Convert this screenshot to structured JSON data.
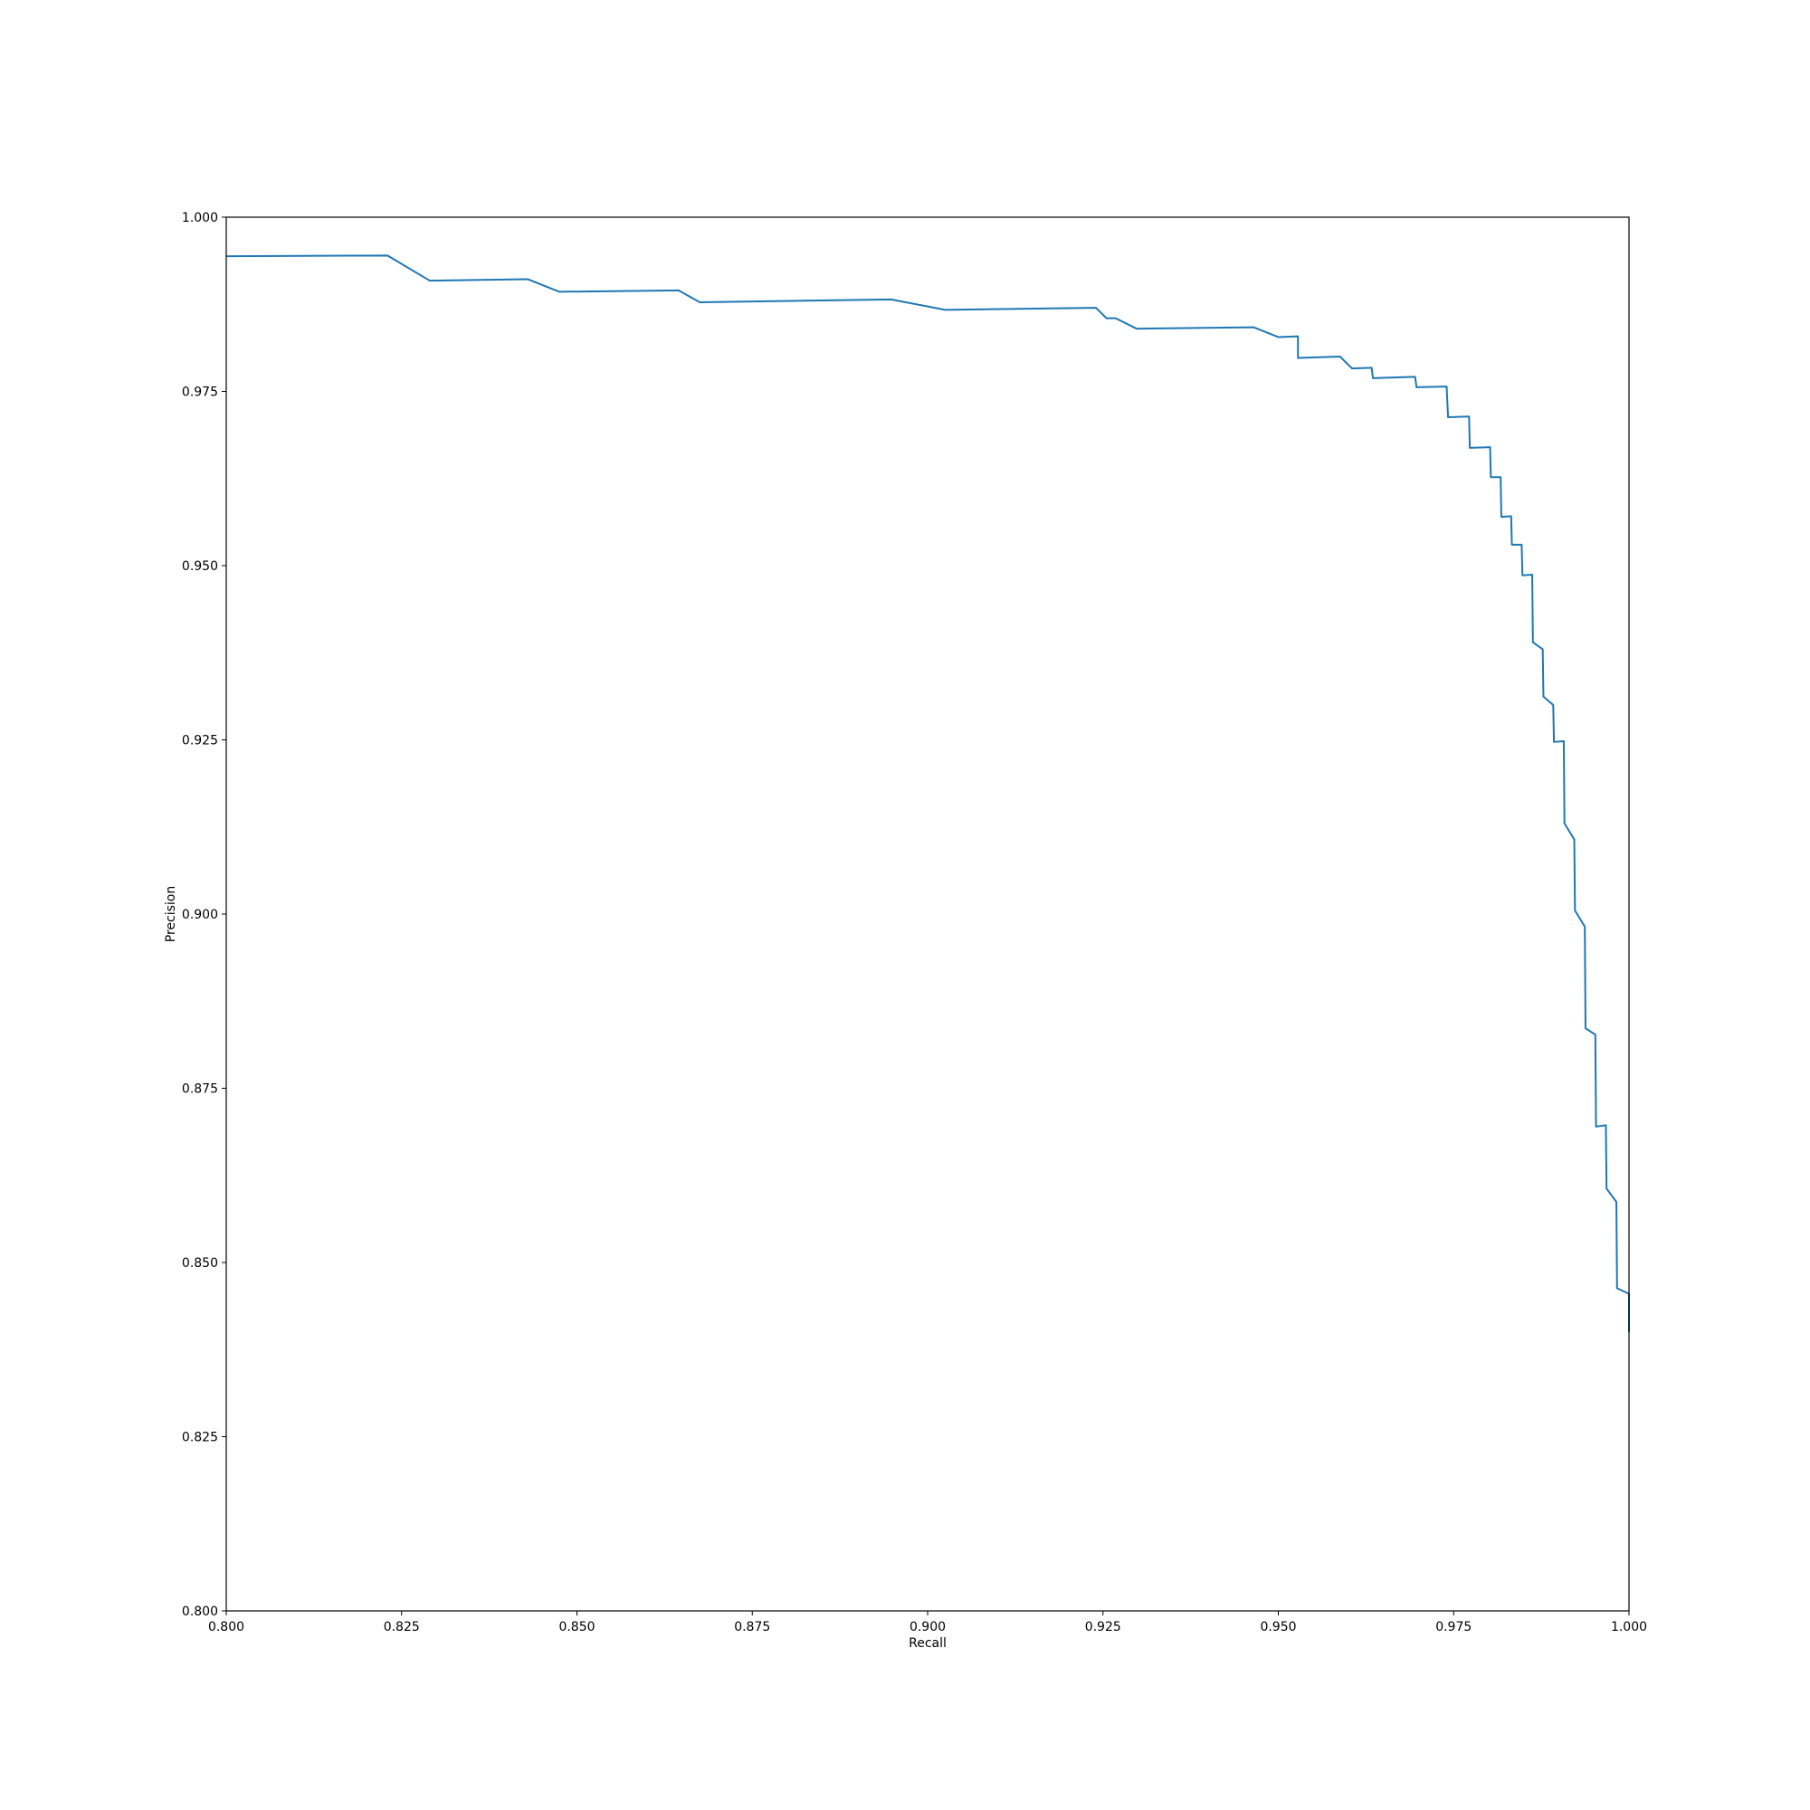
{
  "chart_data": {
    "type": "line",
    "title": "",
    "xlabel": "Recall",
    "ylabel": "Precision",
    "xlim": [
      0.8,
      1.0
    ],
    "ylim": [
      0.8,
      1.0
    ],
    "grid": false,
    "x_ticks": [
      "0.800",
      "0.825",
      "0.850",
      "0.875",
      "0.900",
      "0.925",
      "0.950",
      "0.975",
      "1.000"
    ],
    "y_ticks": [
      "0.800",
      "0.825",
      "0.850",
      "0.875",
      "0.900",
      "0.925",
      "0.950",
      "0.975",
      "1.000"
    ],
    "colors": {
      "line": "#1f77b4",
      "axes": "#000000"
    },
    "series": [
      {
        "x": [
          0.8,
          0.823,
          0.829,
          0.843,
          0.8475,
          0.8645,
          0.8675,
          0.8948,
          0.9025,
          0.924,
          0.9255,
          0.9268,
          0.9298,
          0.9465,
          0.95,
          0.9528,
          0.9528,
          0.9588,
          0.9605,
          0.9633,
          0.9635,
          0.9695,
          0.9697,
          0.974,
          0.9742,
          0.9772,
          0.9773,
          0.9802,
          0.9803,
          0.9817,
          0.9818,
          0.9832,
          0.9833,
          0.9847,
          0.9848,
          0.9862,
          0.9863,
          0.9877,
          0.9878,
          0.9892,
          0.9893,
          0.9907,
          0.9908,
          0.9922,
          0.9923,
          0.9937,
          0.9938,
          0.9952,
          0.9953,
          0.9967,
          0.9968,
          0.9982,
          0.9983,
          1.0,
          1.0
        ],
        "y": [
          0.9944,
          0.9945,
          0.9909,
          0.9911,
          0.9893,
          0.9895,
          0.9878,
          0.9882,
          0.9867,
          0.987,
          0.9855,
          0.9855,
          0.984,
          0.9842,
          0.9828,
          0.9829,
          0.9798,
          0.98,
          0.9783,
          0.9784,
          0.9769,
          0.9771,
          0.9756,
          0.9757,
          0.9713,
          0.9714,
          0.9669,
          0.967,
          0.9627,
          0.9627,
          0.957,
          0.9571,
          0.953,
          0.953,
          0.9486,
          0.9487,
          0.939,
          0.938,
          0.9312,
          0.93,
          0.9247,
          0.9248,
          0.913,
          0.9107,
          0.9005,
          0.8982,
          0.8836,
          0.8827,
          0.8695,
          0.8697,
          0.8606,
          0.8587,
          0.8463,
          0.8455,
          0.84
        ]
      }
    ]
  }
}
